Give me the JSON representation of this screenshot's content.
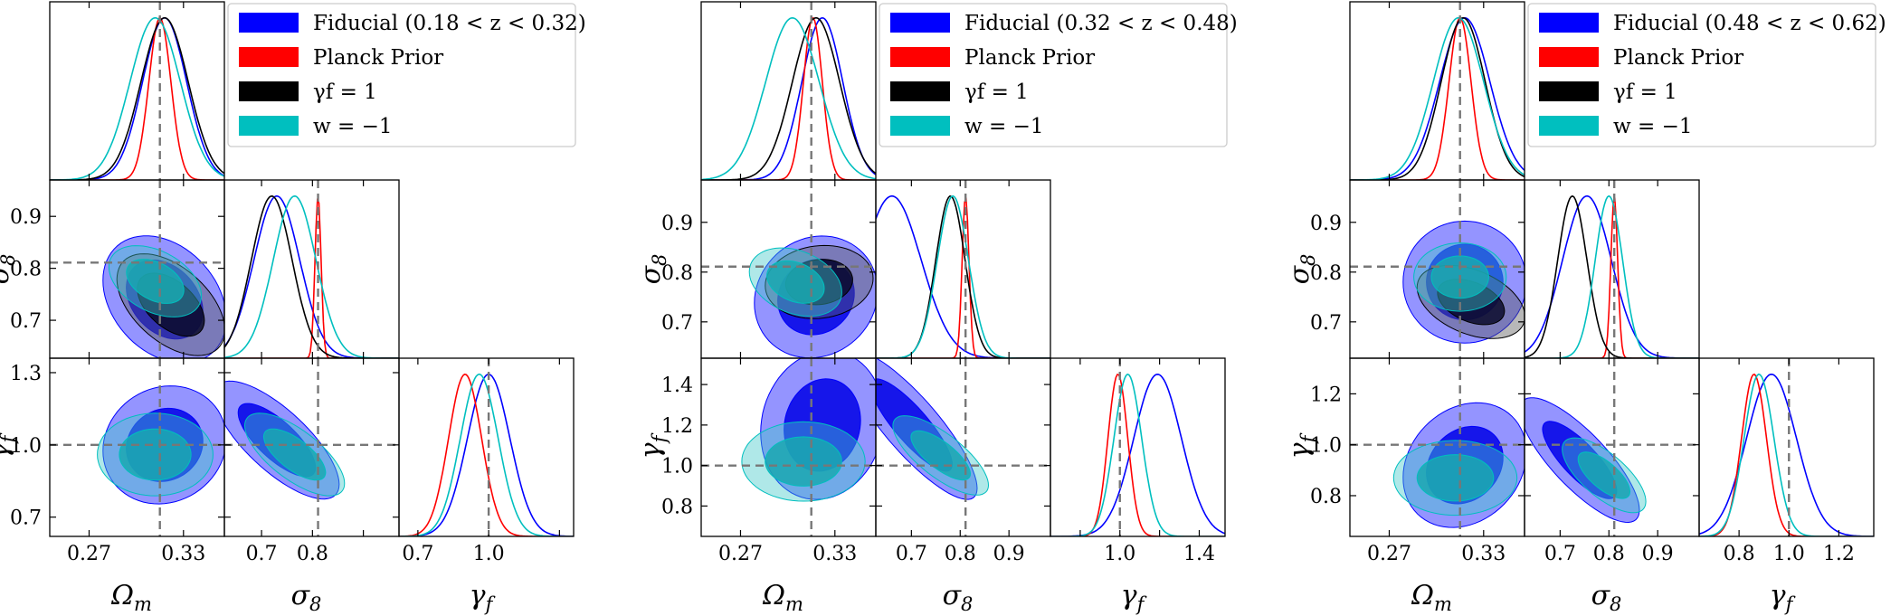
{
  "chart_data": [
    {
      "type": "corner",
      "title": "",
      "legend_position": "top-right",
      "legend": [
        {
          "label": "Fiducial (0.18 < z < 0.32)",
          "color": "#0000ff"
        },
        {
          "label": "Planck Prior",
          "color": "#ff0000"
        },
        {
          "label": "γf = 1",
          "color": "#000000"
        },
        {
          "label": "w = −1",
          "color": "#00bfbf"
        }
      ],
      "parameters": [
        {
          "name": "Ωm",
          "label": "Ωm",
          "range": [
            0.245,
            0.356
          ],
          "ticks": [
            0.27,
            0.33
          ],
          "tick_labels": [
            "0.27",
            "0.33"
          ],
          "truth": 0.315
        },
        {
          "name": "σ8",
          "label": "σ8",
          "range": [
            0.627,
            0.97
          ],
          "ticks": [
            0.7,
            0.8,
            0.9
          ],
          "tick_labels": [
            "0.7",
            "0.8",
            "0.9"
          ],
          "truth": 0.811
        },
        {
          "name": "γf",
          "label": "γf",
          "range": [
            0.62,
            1.36
          ],
          "ticks": [
            0.7,
            1.0,
            1.3
          ],
          "tick_labels": [
            "0.7",
            "1.0",
            "1.3"
          ],
          "truth": 1.0
        }
      ],
      "x_tick_labels": [
        [
          "0.27",
          "0.33"
        ],
        [
          "0.7",
          "0.8"
        ],
        [
          "0.7",
          "1.0"
        ]
      ],
      "marginals": [
        [
          {
            "series": "Fiducial",
            "mean": 0.318,
            "sd": 0.014
          },
          {
            "series": "Planck Prior",
            "mean": 0.315,
            "sd": 0.007
          },
          {
            "series": "γf = 1",
            "mean": 0.318,
            "sd": 0.015
          },
          {
            "series": "w = −1",
            "mean": 0.312,
            "sd": 0.016
          }
        ],
        [
          {
            "series": "Fiducial",
            "mean": 0.73,
            "sd": 0.045
          },
          {
            "series": "Planck Prior",
            "mean": 0.811,
            "sd": 0.006
          },
          {
            "series": "γf = 1",
            "mean": 0.72,
            "sd": 0.04
          },
          {
            "series": "w = −1",
            "mean": 0.765,
            "sd": 0.042
          }
        ],
        [
          {
            "series": "Fiducial",
            "mean": 1.0,
            "sd": 0.09
          },
          {
            "series": "Planck Prior",
            "mean": 0.9,
            "sd": 0.07
          },
          {
            "series": "w = −1",
            "mean": 0.96,
            "sd": 0.08
          }
        ]
      ],
      "contours": [
        {
          "x": "Ωm",
          "y": "σ8",
          "ellipses": [
            {
              "series": "Fiducial",
              "center": [
                0.318,
                0.74
              ],
              "sd": [
                0.016,
                0.05
              ],
              "rho": -0.3
            },
            {
              "series": "γf = 1",
              "center": [
                0.322,
                0.73
              ],
              "sd": [
                0.014,
                0.04
              ],
              "rho": -0.5
            },
            {
              "series": "w = −1",
              "center": [
                0.312,
                0.775
              ],
              "sd": [
                0.012,
                0.028
              ],
              "rho": -0.4
            }
          ]
        },
        {
          "x": "Ωm",
          "y": "γf",
          "ellipses": [
            {
              "series": "Fiducial",
              "center": [
                0.318,
                1.0
              ],
              "sd": [
                0.016,
                0.1
              ],
              "rho": 0.1
            },
            {
              "series": "w = −1",
              "center": [
                0.312,
                0.96
              ],
              "sd": [
                0.015,
                0.07
              ],
              "rho": 0.0
            }
          ]
        },
        {
          "x": "σ8",
          "y": "γf",
          "ellipses": [
            {
              "series": "Fiducial",
              "center": [
                0.73,
                1.02
              ],
              "sd": [
                0.05,
                0.1
              ],
              "rho": -0.75
            },
            {
              "series": "w = −1",
              "center": [
                0.765,
                0.96
              ],
              "sd": [
                0.04,
                0.07
              ],
              "rho": -0.7
            }
          ]
        }
      ]
    },
    {
      "type": "corner",
      "title": "",
      "legend_position": "top-right",
      "legend": [
        {
          "label": "Fiducial (0.32 < z < 0.48)",
          "color": "#0000ff"
        },
        {
          "label": "Planck Prior",
          "color": "#ff0000"
        },
        {
          "label": "γf = 1",
          "color": "#000000"
        },
        {
          "label": "w = −1",
          "color": "#00bfbf"
        }
      ],
      "parameters": [
        {
          "name": "Ωm",
          "label": "Ωm",
          "range": [
            0.245,
            0.356
          ],
          "ticks": [
            0.27,
            0.33
          ],
          "tick_labels": [
            "0.27",
            "0.33"
          ],
          "truth": 0.315
        },
        {
          "name": "σ8",
          "label": "σ8",
          "range": [
            0.627,
            0.985
          ],
          "ticks": [
            0.7,
            0.8,
            0.9
          ],
          "tick_labels": [
            "0.7",
            "0.8",
            "0.9"
          ],
          "truth": 0.811
        },
        {
          "name": "γf",
          "label": "γf",
          "range": [
            0.65,
            1.53
          ],
          "ticks": [
            0.8,
            1.0,
            1.2,
            1.4
          ],
          "tick_labels": [
            "0.8",
            "1.0",
            "1.2",
            "1.4"
          ],
          "truth": 1.0
        }
      ],
      "x_tick_labels": [
        [
          "0.27",
          "0.33"
        ],
        [
          "0.7",
          "0.8",
          "0.9"
        ],
        [
          "1.0",
          "1.4"
        ]
      ],
      "marginals": [
        [
          {
            "series": "Fiducial",
            "mean": 0.322,
            "sd": 0.013
          },
          {
            "series": "Planck Prior",
            "mean": 0.316,
            "sd": 0.006
          },
          {
            "series": "γf = 1",
            "mean": 0.318,
            "sd": 0.015
          },
          {
            "series": "w = −1",
            "mean": 0.303,
            "sd": 0.017
          }
        ],
        [
          {
            "series": "Fiducial",
            "mean": 0.66,
            "sd": 0.06
          },
          {
            "series": "Planck Prior",
            "mean": 0.811,
            "sd": 0.007
          },
          {
            "series": "γf = 1",
            "mean": 0.78,
            "sd": 0.03
          },
          {
            "series": "w = −1",
            "mean": 0.785,
            "sd": 0.032
          }
        ],
        [
          {
            "series": "Fiducial",
            "mean": 1.19,
            "sd": 0.12
          },
          {
            "series": "Planck Prior",
            "mean": 0.99,
            "sd": 0.05
          },
          {
            "series": "w = −1",
            "mean": 1.04,
            "sd": 0.07
          }
        ]
      ],
      "contours": [
        {
          "x": "Ωm",
          "y": "σ8",
          "ellipses": [
            {
              "series": "Fiducial",
              "center": [
                0.318,
                0.75
              ],
              "sd": [
                0.016,
                0.05
              ],
              "rho": 0.1
            },
            {
              "series": "γf = 1",
              "center": [
                0.32,
                0.78
              ],
              "sd": [
                0.014,
                0.03
              ],
              "rho": 0.1
            },
            {
              "series": "w = −1",
              "center": [
                0.305,
                0.78
              ],
              "sd": [
                0.012,
                0.028
              ],
              "rho": -0.3
            }
          ]
        },
        {
          "x": "Ωm",
          "y": "γf",
          "ellipses": [
            {
              "series": "Fiducial",
              "center": [
                0.322,
                1.2
              ],
              "sd": [
                0.016,
                0.15
              ],
              "rho": 0.1
            },
            {
              "series": "w = −1",
              "center": [
                0.31,
                1.02
              ],
              "sd": [
                0.016,
                0.08
              ],
              "rho": 0.0
            }
          ]
        },
        {
          "x": "σ8",
          "y": "γf",
          "ellipses": [
            {
              "series": "Fiducial",
              "center": [
                0.7,
                1.2
              ],
              "sd": [
                0.055,
                0.15
              ],
              "rho": -0.85
            },
            {
              "series": "w = −1",
              "center": [
                0.76,
                1.05
              ],
              "sd": [
                0.04,
                0.08
              ],
              "rho": -0.75
            }
          ]
        }
      ]
    },
    {
      "type": "corner",
      "title": "",
      "legend_position": "top-right",
      "legend": [
        {
          "label": "Fiducial (0.48 < z < 0.62)",
          "color": "#0000ff"
        },
        {
          "label": "Planck Prior",
          "color": "#ff0000"
        },
        {
          "label": "γf = 1",
          "color": "#000000"
        },
        {
          "label": "w = −1",
          "color": "#00bfbf"
        }
      ],
      "parameters": [
        {
          "name": "Ωm",
          "label": "Ωm",
          "range": [
            0.245,
            0.356
          ],
          "ticks": [
            0.27,
            0.33
          ],
          "tick_labels": [
            "0.27",
            "0.33"
          ],
          "truth": 0.315
        },
        {
          "name": "σ8",
          "label": "σ8",
          "range": [
            0.627,
            0.985
          ],
          "ticks": [
            0.7,
            0.8,
            0.9
          ],
          "tick_labels": [
            "0.7",
            "0.8",
            "0.9"
          ],
          "truth": 0.811
        },
        {
          "name": "γf",
          "label": "γf",
          "range": [
            0.64,
            1.34
          ],
          "ticks": [
            0.8,
            1.0,
            1.2
          ],
          "tick_labels": [
            "0.8",
            "1.0",
            "1.2"
          ],
          "truth": 1.0
        }
      ],
      "x_tick_labels": [
        [
          "0.27",
          "0.33"
        ],
        [
          "0.7",
          "0.8",
          "0.9"
        ],
        [
          "0.8",
          "1.0",
          "1.2"
        ]
      ],
      "marginals": [
        [
          {
            "series": "Fiducial",
            "mean": 0.318,
            "sd": 0.016
          },
          {
            "series": "Planck Prior",
            "mean": 0.315,
            "sd": 0.007
          },
          {
            "series": "γf = 1",
            "mean": 0.317,
            "sd": 0.014
          },
          {
            "series": "w = −1",
            "mean": 0.314,
            "sd": 0.016
          }
        ],
        [
          {
            "series": "Fiducial",
            "mean": 0.755,
            "sd": 0.05
          },
          {
            "series": "Planck Prior",
            "mean": 0.811,
            "sd": 0.007
          },
          {
            "series": "γf = 1",
            "mean": 0.725,
            "sd": 0.03
          },
          {
            "series": "w = −1",
            "mean": 0.8,
            "sd": 0.028
          }
        ],
        [
          {
            "series": "Fiducial",
            "mean": 0.93,
            "sd": 0.1
          },
          {
            "series": "Planck Prior",
            "mean": 0.86,
            "sd": 0.05
          },
          {
            "series": "w = −1",
            "mean": 0.88,
            "sd": 0.06
          }
        ]
      ],
      "contours": [
        {
          "x": "Ωm",
          "y": "σ8",
          "ellipses": [
            {
              "series": "Fiducial",
              "center": [
                0.318,
                0.78
              ],
              "sd": [
                0.016,
                0.05
              ],
              "rho": 0.0
            },
            {
              "series": "γf = 1",
              "center": [
                0.322,
                0.74
              ],
              "sd": [
                0.014,
                0.03
              ],
              "rho": -0.4
            },
            {
              "series": "w = −1",
              "center": [
                0.315,
                0.79
              ],
              "sd": [
                0.012,
                0.028
              ],
              "rho": 0.0
            }
          ]
        },
        {
          "x": "Ωm",
          "y": "γf",
          "ellipses": [
            {
              "series": "Fiducial",
              "center": [
                0.318,
                0.92
              ],
              "sd": [
                0.016,
                0.1
              ],
              "rho": 0.2
            },
            {
              "series": "w = −1",
              "center": [
                0.312,
                0.87
              ],
              "sd": [
                0.016,
                0.06
              ],
              "rho": 0.0
            }
          ]
        },
        {
          "x": "σ8",
          "y": "γf",
          "ellipses": [
            {
              "series": "Fiducial",
              "center": [
                0.74,
                0.94
              ],
              "sd": [
                0.05,
                0.1
              ],
              "rho": -0.8
            },
            {
              "series": "w = −1",
              "center": [
                0.79,
                0.88
              ],
              "sd": [
                0.035,
                0.06
              ],
              "rho": -0.7
            }
          ]
        }
      ]
    }
  ]
}
